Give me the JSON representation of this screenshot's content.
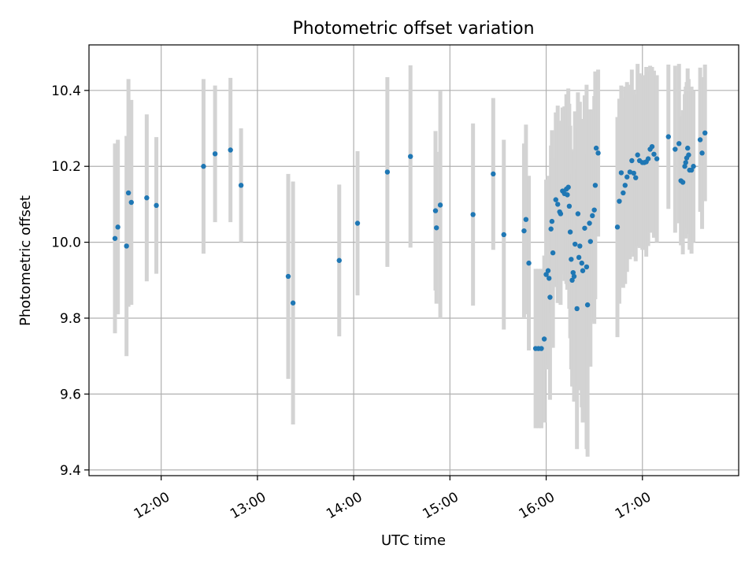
{
  "chart_data": {
    "type": "scatter",
    "title": "Photometric offset variation",
    "xlabel": "UTC time",
    "ylabel": "Photometric offset",
    "x_unit": "UTC time (hours)",
    "xlim": [
      11.25,
      18.0
    ],
    "ylim": [
      9.385,
      10.52
    ],
    "grid": true,
    "x_ticks": [
      {
        "value": 12,
        "label": "12:00"
      },
      {
        "value": 13,
        "label": "13:00"
      },
      {
        "value": 14,
        "label": "14:00"
      },
      {
        "value": 15,
        "label": "15:00"
      },
      {
        "value": 16,
        "label": "16:00"
      },
      {
        "value": 17,
        "label": "17:00"
      }
    ],
    "y_ticks": [
      {
        "value": 9.4,
        "label": "9.4"
      },
      {
        "value": 9.6,
        "label": "9.6"
      },
      {
        "value": 9.8,
        "label": "9.8"
      },
      {
        "value": 10.0,
        "label": "10.0"
      },
      {
        "value": 10.2,
        "label": "10.2"
      },
      {
        "value": 10.4,
        "label": "10.4"
      }
    ],
    "marker_color": "#1f77b4",
    "errorbar_color": "#d3d3d3",
    "series": [
      {
        "points": [
          [
            11.52,
            10.01,
            0.25
          ],
          [
            11.55,
            10.04,
            0.23
          ],
          [
            11.64,
            9.99,
            0.29
          ],
          [
            11.66,
            10.13,
            0.3
          ],
          [
            11.69,
            10.105,
            0.27
          ],
          [
            11.85,
            10.117,
            0.22
          ],
          [
            11.95,
            10.097,
            0.18
          ],
          [
            12.44,
            10.2,
            0.23
          ],
          [
            12.56,
            10.233,
            0.18
          ],
          [
            12.72,
            10.243,
            0.19
          ],
          [
            12.83,
            10.15,
            0.15
          ],
          [
            13.32,
            9.91,
            0.27
          ],
          [
            13.37,
            9.84,
            0.32
          ],
          [
            13.85,
            9.952,
            0.2
          ],
          [
            14.04,
            10.05,
            0.19
          ],
          [
            14.35,
            10.185,
            0.25
          ],
          [
            14.59,
            10.226,
            0.24
          ],
          [
            14.85,
            10.083,
            0.21
          ],
          [
            14.86,
            10.038,
            0.2
          ],
          [
            14.9,
            10.098,
            0.3
          ],
          [
            15.24,
            10.073,
            0.24
          ],
          [
            15.45,
            10.18,
            0.2
          ],
          [
            15.56,
            10.02,
            0.25
          ],
          [
            15.77,
            10.03,
            0.23
          ],
          [
            15.79,
            10.06,
            0.25
          ],
          [
            15.82,
            9.945,
            0.23
          ],
          [
            15.89,
            9.72,
            0.21
          ],
          [
            15.92,
            9.72,
            0.21
          ],
          [
            15.95,
            9.72,
            0.21
          ],
          [
            15.98,
            9.745,
            0.22
          ],
          [
            16.0,
            9.915,
            0.25
          ],
          [
            16.02,
            9.925,
            0.25
          ],
          [
            16.03,
            9.905,
            0.23
          ],
          [
            16.04,
            9.855,
            0.27
          ],
          [
            16.05,
            10.035,
            0.22
          ],
          [
            16.06,
            10.055,
            0.24
          ],
          [
            16.07,
            9.972,
            0.25
          ],
          [
            16.1,
            10.112,
            0.23
          ],
          [
            16.12,
            10.1,
            0.26
          ],
          [
            16.14,
            10.08,
            0.24
          ],
          [
            16.15,
            10.075,
            0.24
          ],
          [
            16.17,
            10.135,
            0.22
          ],
          [
            16.19,
            10.128,
            0.23
          ],
          [
            16.21,
            10.14,
            0.25
          ],
          [
            16.22,
            10.125,
            0.25
          ],
          [
            16.23,
            10.145,
            0.26
          ],
          [
            16.24,
            10.095,
            0.27
          ],
          [
            16.25,
            10.027,
            0.28
          ],
          [
            16.26,
            9.955,
            0.29
          ],
          [
            16.27,
            9.9,
            0.28
          ],
          [
            16.28,
            9.92,
            0.3
          ],
          [
            16.29,
            9.91,
            0.33
          ],
          [
            16.3,
            9.995,
            0.35
          ],
          [
            16.32,
            9.825,
            0.37
          ],
          [
            16.33,
            10.075,
            0.32
          ],
          [
            16.34,
            9.96,
            0.34
          ],
          [
            16.35,
            9.99,
            0.38
          ],
          [
            16.37,
            9.945,
            0.38
          ],
          [
            16.38,
            9.925,
            0.4
          ],
          [
            16.4,
            10.037,
            0.35
          ],
          [
            16.42,
            9.935,
            0.48
          ],
          [
            16.43,
            9.835,
            0.4
          ],
          [
            16.45,
            10.05,
            0.3
          ],
          [
            16.46,
            10.002,
            0.33
          ],
          [
            16.48,
            10.07,
            0.28
          ],
          [
            16.5,
            10.085,
            0.3
          ],
          [
            16.51,
            10.15,
            0.3
          ],
          [
            16.52,
            10.248,
            0.2
          ],
          [
            16.54,
            10.235,
            0.22
          ],
          [
            16.74,
            10.04,
            0.29
          ],
          [
            16.76,
            10.108,
            0.27
          ],
          [
            16.78,
            10.183,
            0.23
          ],
          [
            16.8,
            10.13,
            0.25
          ],
          [
            16.82,
            10.15,
            0.26
          ],
          [
            16.84,
            10.172,
            0.25
          ],
          [
            16.87,
            10.185,
            0.23
          ],
          [
            16.89,
            10.215,
            0.24
          ],
          [
            16.91,
            10.182,
            0.22
          ],
          [
            16.93,
            10.17,
            0.22
          ],
          [
            16.95,
            10.23,
            0.24
          ],
          [
            16.97,
            10.215,
            0.23
          ],
          [
            17.0,
            10.21,
            0.23
          ],
          [
            17.02,
            10.21,
            0.23
          ],
          [
            17.04,
            10.212,
            0.25
          ],
          [
            17.06,
            10.22,
            0.23
          ],
          [
            17.08,
            10.245,
            0.22
          ],
          [
            17.1,
            10.252,
            0.21
          ],
          [
            17.12,
            10.232,
            0.22
          ],
          [
            17.15,
            10.22,
            0.22
          ],
          [
            17.27,
            10.278,
            0.19
          ],
          [
            17.34,
            10.245,
            0.22
          ],
          [
            17.38,
            10.26,
            0.21
          ],
          [
            17.4,
            10.162,
            0.17
          ],
          [
            17.42,
            10.158,
            0.19
          ],
          [
            17.44,
            10.2,
            0.19
          ],
          [
            17.45,
            10.21,
            0.2
          ],
          [
            17.46,
            10.222,
            0.2
          ],
          [
            17.47,
            10.248,
            0.21
          ],
          [
            17.48,
            10.23,
            0.2
          ],
          [
            17.49,
            10.19,
            0.21
          ],
          [
            17.51,
            10.19,
            0.22
          ],
          [
            17.53,
            10.2,
            0.2
          ],
          [
            17.6,
            10.27,
            0.19
          ],
          [
            17.62,
            10.235,
            0.2
          ],
          [
            17.65,
            10.288,
            0.18
          ]
        ]
      }
    ]
  }
}
